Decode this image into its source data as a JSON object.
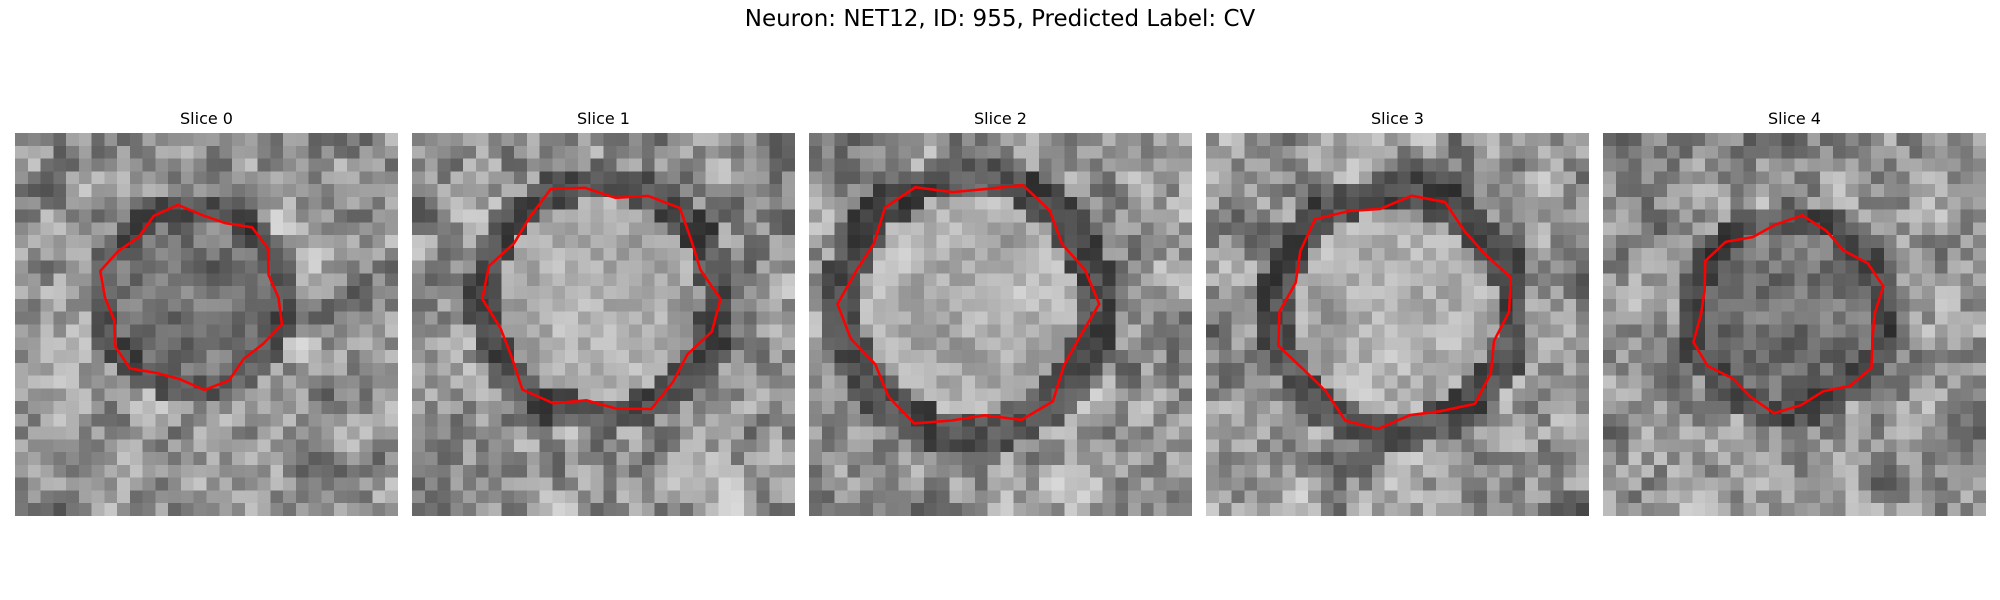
{
  "figure": {
    "title": "Neuron: NET12, ID: 955, Predicted Label: CV"
  },
  "panels": [
    {
      "title": "Slice 0",
      "seed": 11,
      "center": "dark",
      "contour": "#ff0000"
    },
    {
      "title": "Slice 1",
      "seed": 23,
      "center": "light",
      "contour": "#ff0000"
    },
    {
      "title": "Slice 2",
      "seed": 37,
      "center": "light",
      "contour": "#ff0000"
    },
    {
      "title": "Slice 3",
      "seed": 41,
      "center": "light",
      "contour": "#ff0000"
    },
    {
      "title": "Slice 4",
      "seed": 53,
      "center": "dark",
      "contour": "#ff0000"
    }
  ]
}
